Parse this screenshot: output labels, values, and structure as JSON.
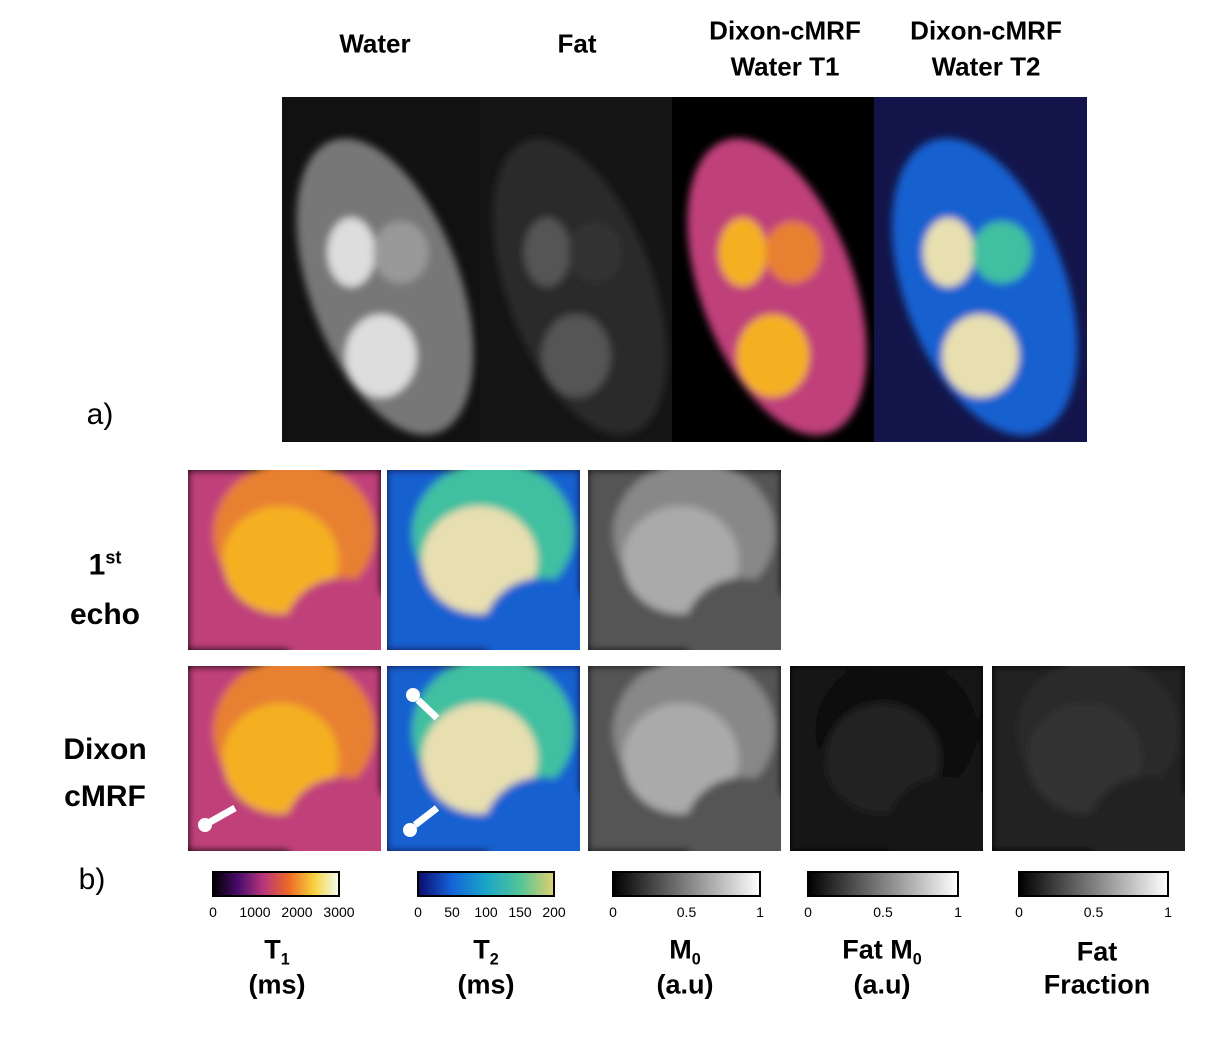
{
  "panel_a": {
    "label": "a)",
    "columns": [
      [
        "Water"
      ],
      [
        "Fat"
      ],
      [
        "Dixon-cMRF",
        "Water T1"
      ],
      [
        "Dixon-cMRF",
        "Water T2"
      ]
    ]
  },
  "panel_b": {
    "label": "b)",
    "rows": [
      {
        "main": "1",
        "sup": "st",
        "line2": "echo"
      },
      {
        "main": "Dixon",
        "line2": "cMRF"
      }
    ],
    "colorbars": [
      {
        "ticks": [
          "0",
          "1000",
          "2000",
          "3000"
        ],
        "title": {
          "main": "T",
          "sub": "1",
          "line2": "(ms)"
        }
      },
      {
        "ticks": [
          "0",
          "50",
          "100",
          "150",
          "200"
        ],
        "title": {
          "main": "T",
          "sub": "2",
          "line2": "(ms)"
        }
      },
      {
        "ticks": [
          "0",
          "0.5",
          "1"
        ],
        "title": {
          "main": "M",
          "sub": "0",
          "line2": "(a.u)"
        }
      },
      {
        "ticks": [
          "0",
          "0.5",
          "1"
        ],
        "title": {
          "main": "Fat M",
          "sub": "0",
          "line2": "(a.u)"
        }
      },
      {
        "ticks": [
          "0",
          "0.5",
          "1"
        ],
        "title": {
          "main": "Fat",
          "line2": "Fraction"
        }
      }
    ]
  }
}
